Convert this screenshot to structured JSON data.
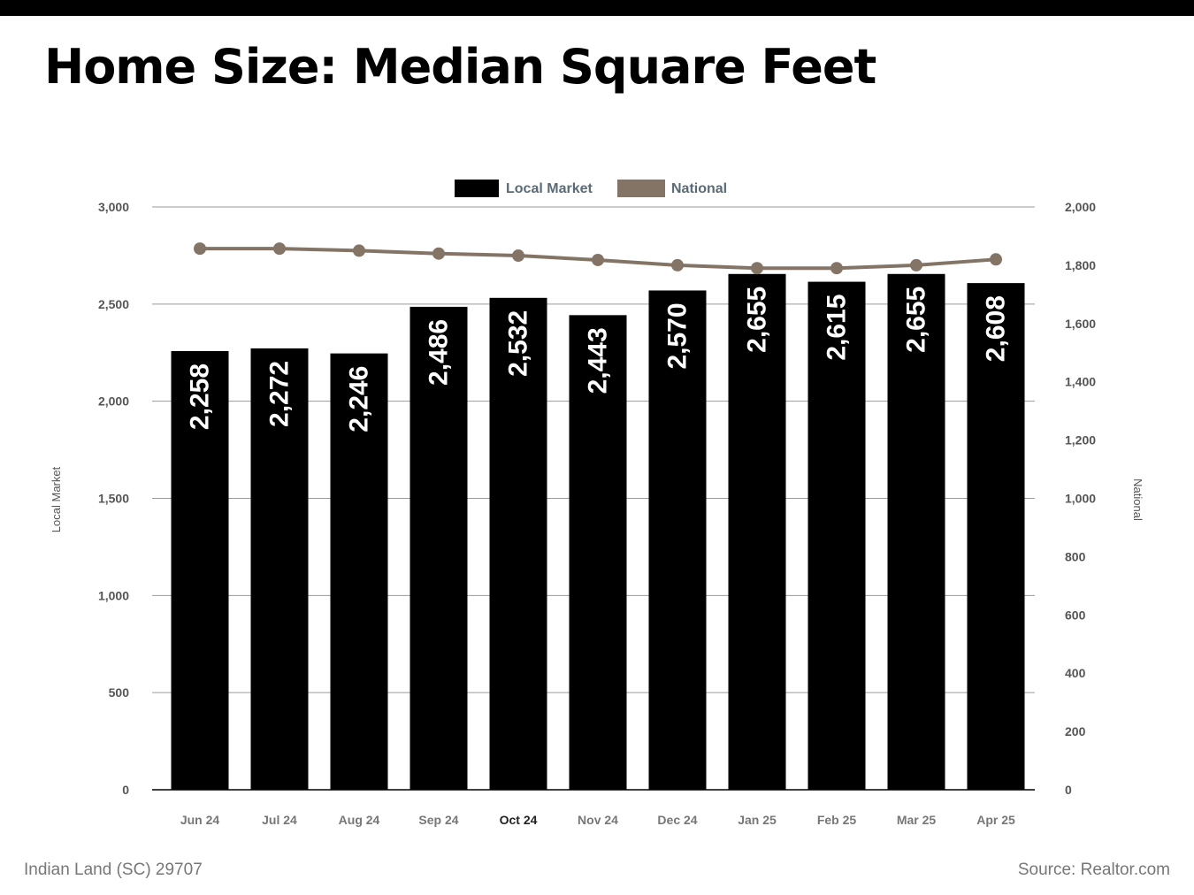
{
  "header": {
    "title": "Home Size: Median Square Feet"
  },
  "footer": {
    "location": "Indian Land (SC) 29707",
    "source": "Source: Realtor.com"
  },
  "colors": {
    "bar": "#000000",
    "line": "#847466",
    "legend_text": "#5a6b76",
    "axis_text": "#555555",
    "grid": "#9a9a9a"
  },
  "chart_data": {
    "type": "bar",
    "categories": [
      "Jun 24",
      "Jul 24",
      "Aug 24",
      "Sep 24",
      "Oct 24",
      "Nov 24",
      "Dec 24",
      "Jan 25",
      "Feb 25",
      "Mar 25",
      "Apr 25"
    ],
    "series": [
      {
        "name": "Local Market",
        "type": "bar",
        "axis": "left",
        "values": [
          2258,
          2272,
          2246,
          2486,
          2532,
          2443,
          2570,
          2655,
          2615,
          2655,
          2608
        ],
        "labels": [
          "2,258",
          "2,272",
          "2,246",
          "2,486",
          "2,532",
          "2,443",
          "2,570",
          "2,655",
          "2,615",
          "2,655",
          "2,608"
        ]
      },
      {
        "name": "National",
        "type": "line",
        "axis": "right",
        "values": [
          1857,
          1857,
          1850,
          1840,
          1833,
          1818,
          1800,
          1790,
          1790,
          1800,
          1820
        ]
      }
    ],
    "title": "Home Size: Median Square Feet",
    "ylabel": "Local Market",
    "ylabel_right": "National",
    "ylim": [
      0,
      3000
    ],
    "ylim_right": [
      0,
      2000
    ],
    "yticks": [
      "0",
      "500",
      "1,000",
      "1,500",
      "2,000",
      "2,500",
      "3,000"
    ],
    "yticks_right": [
      "0",
      "200",
      "400",
      "600",
      "800",
      "1,000",
      "1,200",
      "1,400",
      "1,600",
      "1,800",
      "2,000"
    ],
    "grid": true,
    "legend_position": "top-center"
  }
}
